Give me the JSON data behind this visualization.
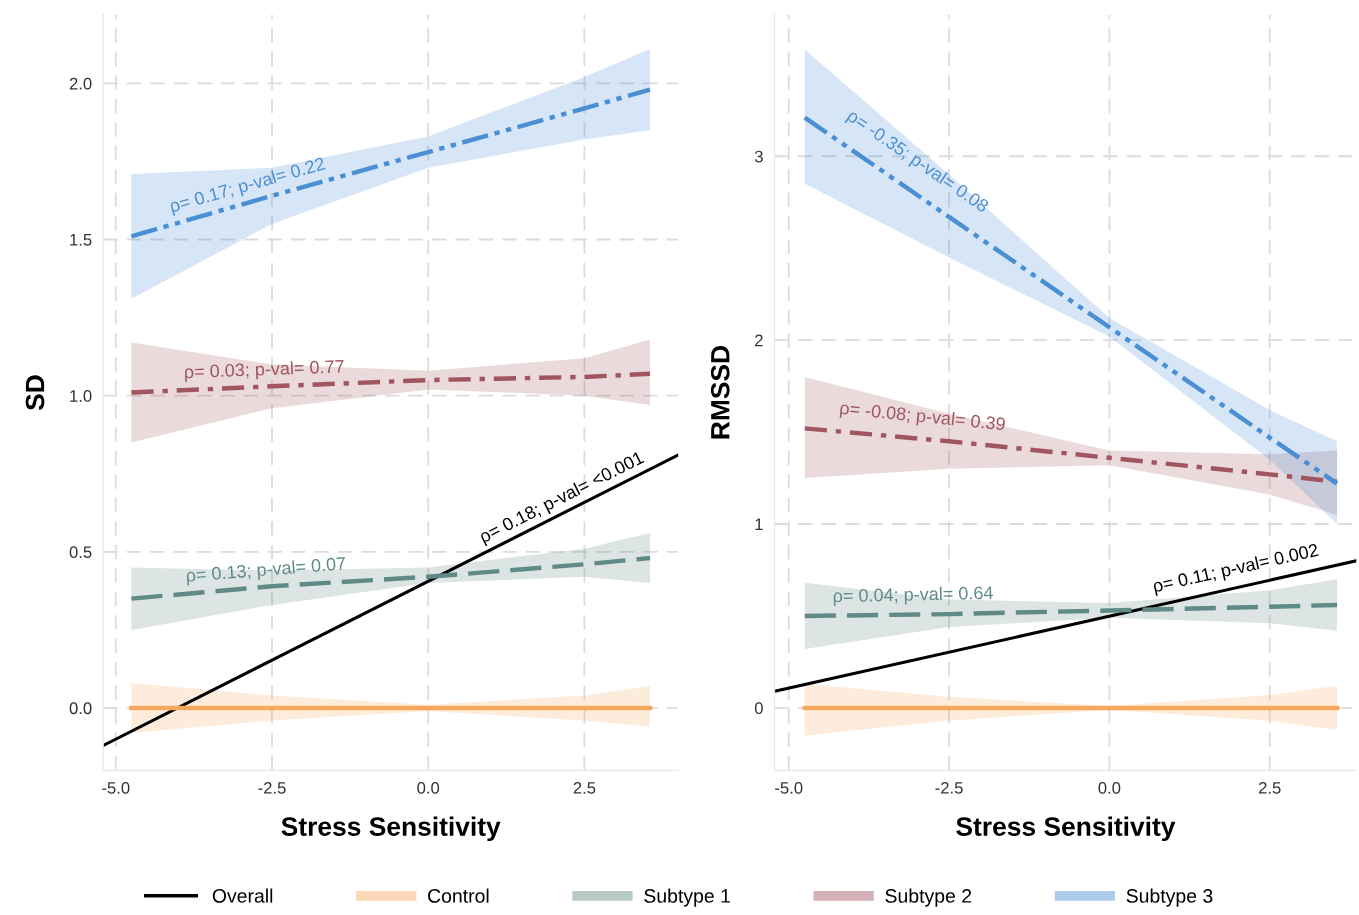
{
  "chart_data": [
    {
      "type": "line",
      "xlabel": "Stress Sensitivity",
      "ylabel": "SD",
      "xlim": [
        -5.2,
        4.0
      ],
      "ylim": [
        -0.2,
        2.22
      ],
      "xticks": [
        {
          "value": -5,
          "label": "-5.0"
        },
        {
          "value": -2.5,
          "label": "-2.5"
        },
        {
          "value": 0,
          "label": "0.0"
        },
        {
          "value": 2.5,
          "label": "2.5"
        }
      ],
      "yticks": [
        {
          "value": 0,
          "label": "0.0"
        },
        {
          "value": 0.5,
          "label": "0.5"
        },
        {
          "value": 1,
          "label": "1.0"
        },
        {
          "value": 1.5,
          "label": "1.5"
        },
        {
          "value": 2,
          "label": "2.0"
        }
      ],
      "grid": true,
      "legend": "bottom",
      "series": [
        {
          "name": "Overall",
          "color": "#000000",
          "line_style": "solid",
          "x": [
            -5.2,
            4.0
          ],
          "values": [
            -0.12,
            0.81
          ]
        },
        {
          "name": "Control",
          "color": "#f5a85e",
          "line_style": "solid",
          "x": [
            -4.75,
            -2.5,
            0,
            2.5,
            3.55
          ],
          "values": [
            0,
            0,
            0,
            0,
            0
          ],
          "lower": [
            -0.08,
            -0.04,
            -0.01,
            -0.04,
            -0.06
          ],
          "upper": [
            0.08,
            0.04,
            0.01,
            0.04,
            0.07
          ]
        },
        {
          "name": "Subtype 1",
          "color": "#5f8a86",
          "line_style": "dashed",
          "x": [
            -4.75,
            -2.5,
            0,
            2.5,
            3.55
          ],
          "values": [
            0.35,
            0.39,
            0.42,
            0.46,
            0.48
          ],
          "lower": [
            0.25,
            0.33,
            0.4,
            0.42,
            0.4
          ],
          "upper": [
            0.45,
            0.44,
            0.45,
            0.51,
            0.56
          ]
        },
        {
          "name": "Subtype 2",
          "color": "#a0555f",
          "line_style": "dotted",
          "x": [
            -4.75,
            -2.5,
            0,
            2.5,
            3.55
          ],
          "values": [
            1.01,
            1.03,
            1.05,
            1.06,
            1.07
          ],
          "lower": [
            0.85,
            0.96,
            1.02,
            1.0,
            0.97
          ],
          "upper": [
            1.17,
            1.1,
            1.08,
            1.12,
            1.18
          ]
        },
        {
          "name": "Subtype 3",
          "color": "#4a8fd4",
          "line_style": "dashdot",
          "x": [
            -4.75,
            -2.5,
            0,
            2.5,
            3.55
          ],
          "values": [
            1.51,
            1.64,
            1.78,
            1.92,
            1.98
          ],
          "lower": [
            1.31,
            1.55,
            1.73,
            1.82,
            1.85
          ],
          "upper": [
            1.71,
            1.73,
            1.83,
            2.02,
            2.11
          ]
        }
      ],
      "annotations": [
        "ρ= 0.17; p-val= 0.22",
        "ρ= 0.03; p-val= 0.77",
        "ρ= 0.13; p-val= 0.07",
        "ρ= 0.18; p-val= <0.001"
      ]
    },
    {
      "type": "line",
      "xlabel": "Stress Sensitivity",
      "ylabel": "RMSSD",
      "xlim": [
        -5.22,
        3.85
      ],
      "ylim": [
        -0.34,
        3.77
      ],
      "xticks": [
        {
          "value": -5,
          "label": "-5.0"
        },
        {
          "value": -2.5,
          "label": "-2.5"
        },
        {
          "value": 0,
          "label": "0.0"
        },
        {
          "value": 2.5,
          "label": "2.5"
        }
      ],
      "yticks": [
        0,
        1,
        2,
        3
      ],
      "grid": true,
      "legend": "bottom",
      "series": [
        {
          "name": "Overall",
          "color": "#000000",
          "line_style": "solid",
          "x": [
            -5.22,
            3.85
          ],
          "values": [
            0.09,
            0.8
          ]
        },
        {
          "name": "Control",
          "color": "#f5a85e",
          "line_style": "solid",
          "x": [
            -4.75,
            -2.5,
            0,
            2.5,
            3.55
          ],
          "values": [
            0,
            0,
            0,
            0,
            0
          ],
          "lower": [
            -0.15,
            -0.07,
            -0.01,
            -0.07,
            -0.12
          ],
          "upper": [
            0.13,
            0.06,
            0.01,
            0.07,
            0.12
          ]
        },
        {
          "name": "Subtype 1",
          "color": "#5f8a86",
          "line_style": "dashed",
          "x": [
            -4.75,
            -2.5,
            0,
            2.5,
            3.55
          ],
          "values": [
            0.5,
            0.51,
            0.53,
            0.55,
            0.56
          ],
          "lower": [
            0.32,
            0.44,
            0.49,
            0.46,
            0.42
          ],
          "upper": [
            0.68,
            0.59,
            0.57,
            0.64,
            0.7
          ]
        },
        {
          "name": "Subtype 2",
          "color": "#a0555f",
          "line_style": "dotted",
          "x": [
            -4.75,
            -2.5,
            0,
            2.5,
            3.55
          ],
          "values": [
            1.52,
            1.45,
            1.36,
            1.27,
            1.23
          ],
          "lower": [
            1.25,
            1.3,
            1.32,
            1.16,
            1.05
          ],
          "upper": [
            1.8,
            1.6,
            1.4,
            1.38,
            1.4
          ]
        },
        {
          "name": "Subtype 3",
          "color": "#4a8fd4",
          "line_style": "dashdot",
          "x": [
            -4.75,
            -2.5,
            0,
            2.5,
            3.55
          ],
          "values": [
            3.21,
            2.67,
            2.07,
            1.47,
            1.22
          ],
          "lower": [
            2.85,
            2.45,
            2.02,
            1.35,
            1.0
          ],
          "upper": [
            3.58,
            2.9,
            2.12,
            1.62,
            1.45
          ]
        }
      ],
      "annotations": [
        "ρ= -0.35; p-val= 0.08",
        "ρ= -0.08; p-val= 0.39",
        "ρ= 0.04; p-val= 0.64",
        "ρ= 0.11; p-val= 0.002"
      ]
    }
  ]
}
